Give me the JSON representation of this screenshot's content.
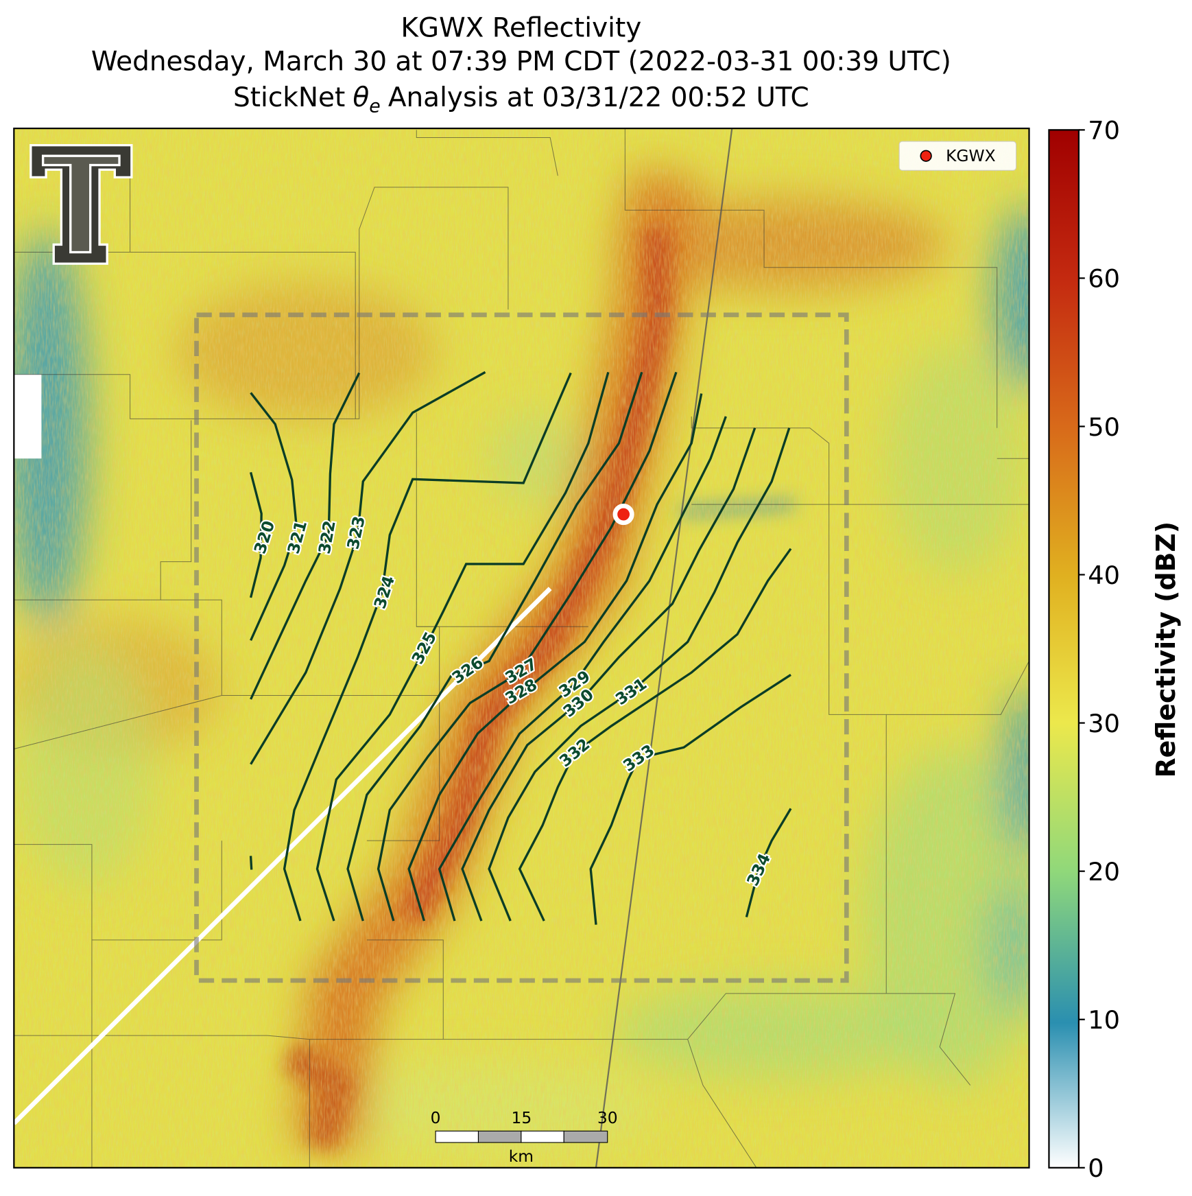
{
  "title": [
    "KGWX Reflectivity",
    "Wednesday, March 30 at 07:39 PM CDT (2022-03-31 00:39 UTC)"
  ],
  "subtitle": {
    "prefix": "StickNet",
    "symbol": "θ",
    "subscript": "e",
    "suffix": "Analysis at 03/31/22 00:52 UTC"
  },
  "legend": {
    "label": "KGWX"
  },
  "colorbar": {
    "label": "Reflectivity (dBZ)",
    "lim": [
      0,
      70
    ],
    "ticks": [
      0,
      10,
      20,
      30,
      40,
      50,
      60,
      70
    ]
  },
  "scale_bar": {
    "ticks": [
      0,
      15,
      30
    ],
    "unit": "km"
  },
  "contours": {
    "levels": [
      320,
      321,
      322,
      323,
      324,
      325,
      326,
      327,
      328,
      329,
      330,
      331,
      332,
      333,
      334
    ]
  }
}
